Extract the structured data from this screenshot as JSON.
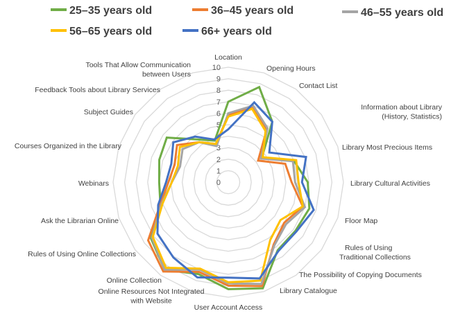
{
  "chart_data": {
    "type": "radar",
    "title": "",
    "rlim": [
      0,
      10
    ],
    "ticks": [
      "0",
      "1",
      "2",
      "3",
      "4",
      "5",
      "6",
      "7",
      "8",
      "9",
      "10"
    ],
    "grid": true,
    "legend_placement": "top",
    "categories": [
      "Location",
      "Opening Hours",
      "Contact List",
      "Information about Library (History, Statistics)",
      "Library Most Precious Items",
      "Library Cultural Activities",
      "Floor Map",
      "Rules of Using Traditional Collections",
      "The Possibility of Copying Documents",
      "Library Catalogue",
      "User Account Access",
      "Online Resources Not Integrated with Website",
      "Online Collection",
      "Rules of Using Online Collections",
      "Ask the Librarian Online",
      "Webinars",
      "Courses Organized in the Library",
      "Subject Guides",
      "Feedback Tools about Library Services",
      "Tools That Allow Communication between Users"
    ],
    "category_lines": [
      [
        "Location"
      ],
      [
        "Opening Hours"
      ],
      [
        "Contact List"
      ],
      [
        "Information about Library",
        "(History, Statistics)"
      ],
      [
        "Library Most Precious Items"
      ],
      [
        "Library Cultural Activities"
      ],
      [
        "Floor Map"
      ],
      [
        "Rules of Using",
        "Traditional Collections"
      ],
      [
        "The Possibility of Copying  Documents"
      ],
      [
        "Library Catalogue"
      ],
      [
        "User Account Access"
      ],
      [
        "Online Resources Not Integrated",
        "with Website"
      ],
      [
        "Online Collection"
      ],
      [
        "Rules of Using Online Collections"
      ],
      [
        "Ask the Librarian  Online"
      ],
      [
        "Webinars"
      ],
      [
        "Courses Organized in the Library"
      ],
      [
        "Subject Guides"
      ],
      [
        "Feedback Tools about Library Services"
      ],
      [
        "Tools  That  Allow Communication",
        "between Users"
      ]
    ],
    "series": [
      {
        "name": "25–35 years old",
        "color": "#70AD47",
        "values": [
          7.0,
          8.7,
          6.5,
          3.6,
          6.0,
          6.9,
          7.4,
          7.2,
          7.3,
          9.7,
          9.3,
          8.4,
          9.4,
          8.3,
          6.2,
          6.0,
          6.3,
          6.6,
          4.6,
          3.8
        ]
      },
      {
        "name": "36–45 years old",
        "color": "#ED7D31",
        "values": [
          5.8,
          6.9,
          5.7,
          3.2,
          5.2,
          5.5,
          6.8,
          6.0,
          6.7,
          9.5,
          9.0,
          8.2,
          9.6,
          8.6,
          6.2,
          5.2,
          4.9,
          5.5,
          4.3,
          3.5
        ]
      },
      {
        "name": "46–55 years old",
        "color": "#A5A5A5",
        "values": [
          6.0,
          7.0,
          5.8,
          3.5,
          5.9,
          5.8,
          7.0,
          6.2,
          6.8,
          9.3,
          8.8,
          8.0,
          9.4,
          8.2,
          6.1,
          4.9,
          4.4,
          4.9,
          4.3,
          3.3
        ]
      },
      {
        "name": "56–65 years old",
        "color": "#FFC000",
        "values": [
          5.7,
          6.7,
          5.5,
          3.7,
          6.2,
          6.1,
          6.8,
          5.6,
          6.2,
          9.0,
          8.7,
          7.9,
          9.2,
          8.1,
          6.0,
          4.9,
          4.6,
          5.2,
          4.3,
          3.5
        ]
      },
      {
        "name": "66+ years old",
        "color": "#4472C4",
        "values": [
          4.6,
          7.3,
          6.5,
          4.4,
          7.1,
          6.4,
          7.8,
          7.3,
          7.4,
          8.8,
          8.3,
          8.7,
          8.1,
          7.6,
          6.4,
          5.4,
          5.2,
          5.9,
          4.9,
          3.9
        ]
      }
    ]
  }
}
